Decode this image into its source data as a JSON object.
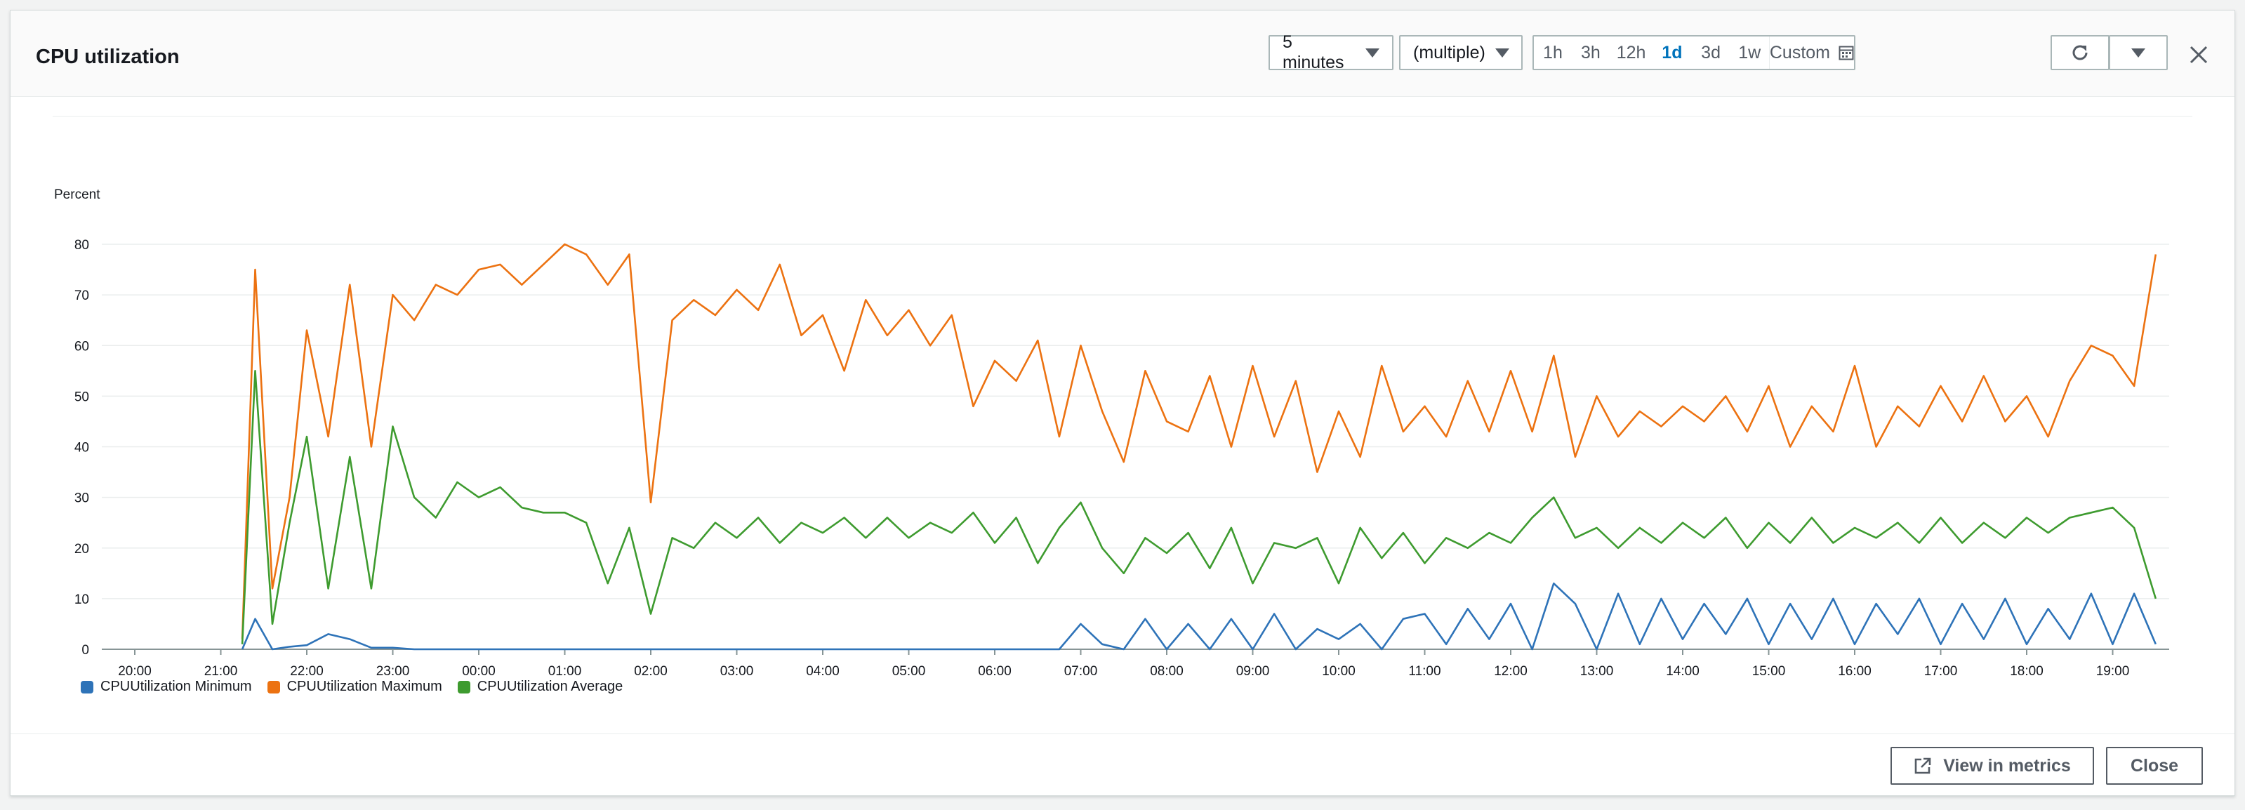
{
  "modal": {
    "title": "CPU utilization",
    "period_select": "5 minutes",
    "stat_select": "(multiple)",
    "time_ranges": [
      {
        "label": "1h",
        "active": false
      },
      {
        "label": "3h",
        "active": false
      },
      {
        "label": "12h",
        "active": false
      },
      {
        "label": "1d",
        "active": true
      },
      {
        "label": "3d",
        "active": false
      },
      {
        "label": "1w",
        "active": false
      },
      {
        "label": "Custom",
        "active": false
      }
    ],
    "icons": {
      "calendar": "calendar-icon",
      "refresh": "refresh-icon",
      "more": "caret-down-icon",
      "close": "close-icon",
      "external": "external-link-icon"
    },
    "footer": {
      "view_in_metrics": "View in metrics",
      "close": "Close"
    }
  },
  "chart_data": {
    "type": "line",
    "ylabel": "Percent",
    "ylim": [
      0,
      80
    ],
    "yticks": [
      0,
      10,
      20,
      30,
      40,
      50,
      60,
      70,
      80
    ],
    "xticks": [
      "20:00",
      "21:00",
      "22:00",
      "23:00",
      "00:00",
      "01:00",
      "02:00",
      "03:00",
      "04:00",
      "05:00",
      "06:00",
      "07:00",
      "08:00",
      "09:00",
      "10:00",
      "11:00",
      "12:00",
      "13:00",
      "14:00",
      "15:00",
      "16:00",
      "17:00",
      "18:00",
      "19:00"
    ],
    "x_hours": [
      21.25,
      21.4,
      21.6,
      21.8,
      22.0,
      22.25,
      22.5,
      22.75,
      23.0,
      23.25,
      23.5,
      23.75,
      0.0,
      0.25,
      0.5,
      0.75,
      1.0,
      1.25,
      1.5,
      1.75,
      2.0,
      2.25,
      2.5,
      2.75,
      3.0,
      3.25,
      3.5,
      3.75,
      4.0,
      4.25,
      4.5,
      4.75,
      5.0,
      5.25,
      5.5,
      5.75,
      6.0,
      6.25,
      6.5,
      6.75,
      7.0,
      7.25,
      7.5,
      7.75,
      8.0,
      8.25,
      8.5,
      8.75,
      9.0,
      9.25,
      9.5,
      9.75,
      10.0,
      10.25,
      10.5,
      10.75,
      11.0,
      11.25,
      11.5,
      11.75,
      12.0,
      12.25,
      12.5,
      12.75,
      13.0,
      13.25,
      13.5,
      13.75,
      14.0,
      14.25,
      14.5,
      14.75,
      15.0,
      15.25,
      15.5,
      15.75,
      16.0,
      16.25,
      16.5,
      16.75,
      17.0,
      17.25,
      17.5,
      17.75,
      18.0,
      18.25,
      18.5,
      18.75,
      19.0,
      19.25,
      19.5
    ],
    "series": [
      {
        "name": "CPUUtilization Minimum",
        "color": "#2e73b8",
        "values": [
          0,
          6,
          0,
          0.5,
          0.8,
          3,
          2,
          0.3,
          0.3,
          0,
          0,
          0,
          0,
          0,
          0,
          0,
          0,
          0,
          0,
          0,
          0,
          0,
          0,
          0,
          0,
          0,
          0,
          0,
          0,
          0,
          0,
          0,
          0,
          0,
          0,
          0,
          0,
          0,
          0,
          0,
          5,
          1,
          0,
          6,
          0,
          5,
          0,
          6,
          0,
          7,
          0,
          4,
          2,
          5,
          0,
          6,
          7,
          1,
          8,
          2,
          9,
          0,
          13,
          9,
          0,
          11,
          1,
          10,
          2,
          9,
          3,
          10,
          1,
          9,
          2,
          10,
          1,
          9,
          3,
          10,
          1,
          9,
          2,
          10,
          1,
          8,
          2,
          11,
          1,
          11,
          1
        ]
      },
      {
        "name": "CPUUtilization Maximum",
        "color": "#ec7211",
        "values": [
          2,
          75,
          12,
          30,
          63,
          42,
          72,
          40,
          70,
          65,
          72,
          70,
          75,
          76,
          72,
          76,
          80,
          78,
          72,
          78,
          29,
          65,
          69,
          66,
          71,
          67,
          76,
          62,
          66,
          55,
          69,
          62,
          67,
          60,
          66,
          48,
          57,
          53,
          61,
          42,
          60,
          47,
          37,
          55,
          45,
          43,
          54,
          40,
          56,
          42,
          53,
          35,
          47,
          38,
          56,
          43,
          48,
          42,
          53,
          43,
          55,
          43,
          58,
          38,
          50,
          42,
          47,
          44,
          48,
          45,
          50,
          43,
          52,
          40,
          48,
          43,
          56,
          40,
          48,
          44,
          52,
          45,
          54,
          45,
          50,
          42,
          53,
          60,
          58,
          52,
          78
        ]
      },
      {
        "name": "CPUUtilization Average",
        "color": "#3e9b2f",
        "values": [
          1,
          55,
          5,
          25,
          42,
          12,
          38,
          12,
          44,
          30,
          26,
          33,
          30,
          32,
          28,
          27,
          27,
          25,
          13,
          24,
          7,
          22,
          20,
          25,
          22,
          26,
          21,
          25,
          23,
          26,
          22,
          26,
          22,
          25,
          23,
          27,
          21,
          26,
          17,
          24,
          29,
          20,
          15,
          22,
          19,
          23,
          16,
          24,
          13,
          21,
          20,
          22,
          13,
          24,
          18,
          23,
          17,
          22,
          20,
          23,
          21,
          26,
          30,
          22,
          24,
          20,
          24,
          21,
          25,
          22,
          26,
          20,
          25,
          21,
          26,
          21,
          24,
          22,
          25,
          21,
          26,
          21,
          25,
          22,
          26,
          23,
          26,
          27,
          28,
          24,
          10
        ]
      }
    ]
  }
}
